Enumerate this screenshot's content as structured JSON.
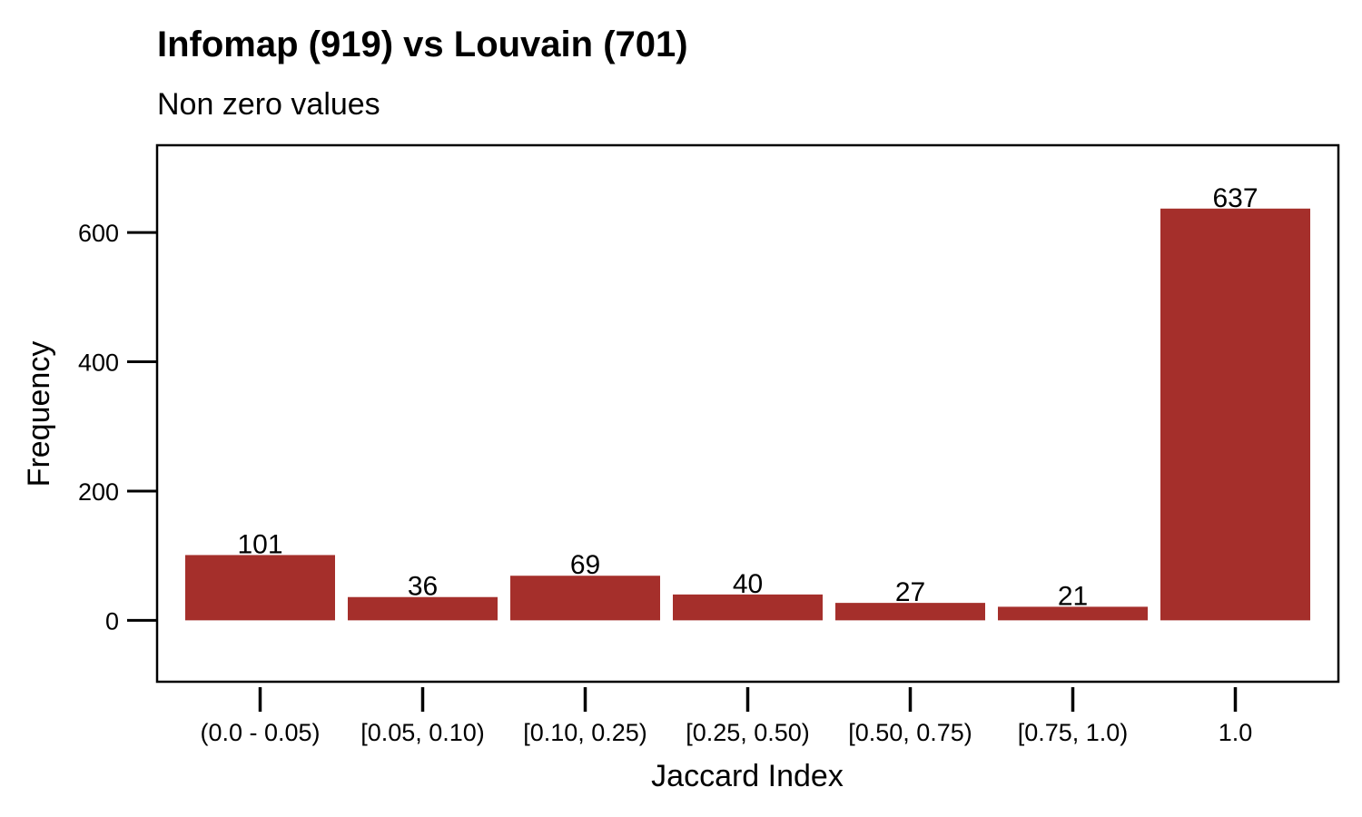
{
  "chart_data": {
    "type": "bar",
    "title": "Infomap (919) vs Louvain (701)",
    "subtitle": "Non zero values",
    "xlabel": "Jaccard Index",
    "ylabel": "Frequency",
    "categories": [
      "(0.0 - 0.05)",
      "[0.05, 0.10)",
      "[0.10, 0.25)",
      "[0.25, 0.50)",
      "[0.50, 0.75)",
      "[0.75, 1.0)",
      "1.0"
    ],
    "values": [
      101,
      36,
      69,
      40,
      27,
      21,
      637
    ],
    "data_labels": [
      "101",
      "36",
      "69",
      "40",
      "27",
      "21",
      "637"
    ],
    "yticks": [
      0,
      200,
      400,
      600
    ],
    "ytick_labels": [
      "0",
      "200",
      "400",
      "600"
    ],
    "ylim": [
      -95,
      735
    ],
    "grid": false,
    "legend": "none",
    "colors": {
      "bar": "#a52f2b",
      "axis": "#000000",
      "background": "#ffffff"
    }
  }
}
